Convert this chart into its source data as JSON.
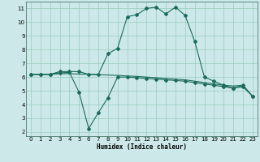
{
  "xlabel": "Humidex (Indice chaleur)",
  "xlim": [
    -0.5,
    23.5
  ],
  "ylim": [
    1.7,
    11.5
  ],
  "yticks": [
    2,
    3,
    4,
    5,
    6,
    7,
    8,
    9,
    10,
    11
  ],
  "xticks": [
    0,
    1,
    2,
    3,
    4,
    5,
    6,
    7,
    8,
    9,
    10,
    11,
    12,
    13,
    14,
    15,
    16,
    17,
    18,
    19,
    20,
    21,
    22,
    23
  ],
  "bg_color": "#cce8e8",
  "line_color": "#1a6b5a",
  "grid_color": "#99ccbb",
  "line1_x": [
    0,
    1,
    2,
    3,
    4,
    5,
    6,
    7,
    8,
    9,
    10,
    11,
    12,
    13,
    14,
    15,
    16,
    17,
    18,
    19,
    20,
    21,
    22,
    23
  ],
  "line1_y": [
    6.2,
    6.2,
    6.2,
    6.4,
    6.4,
    6.4,
    6.2,
    6.2,
    7.7,
    8.1,
    10.4,
    10.55,
    11.0,
    11.1,
    10.6,
    11.1,
    10.5,
    8.6,
    6.0,
    5.7,
    5.4,
    5.2,
    5.4,
    4.6
  ],
  "line2_x": [
    0,
    1,
    2,
    3,
    4,
    5,
    6,
    7,
    8,
    9,
    10,
    11,
    12,
    13,
    14,
    15,
    16,
    17,
    18,
    19,
    20,
    21,
    22,
    23
  ],
  "line2_y": [
    6.2,
    6.2,
    6.2,
    6.25,
    6.25,
    6.22,
    6.2,
    6.18,
    6.15,
    6.12,
    6.08,
    6.05,
    6.0,
    5.95,
    5.9,
    5.85,
    5.8,
    5.7,
    5.6,
    5.5,
    5.4,
    5.35,
    5.4,
    4.6
  ],
  "line3_x": [
    0,
    1,
    2,
    3,
    4,
    5,
    6,
    7,
    8,
    9,
    10,
    11,
    12,
    13,
    14,
    15,
    16,
    17,
    18,
    19,
    20,
    21,
    22,
    23
  ],
  "line3_y": [
    6.2,
    6.2,
    6.2,
    6.3,
    6.35,
    4.9,
    2.25,
    3.4,
    4.5,
    6.0,
    6.0,
    5.95,
    5.9,
    5.85,
    5.8,
    5.75,
    5.7,
    5.6,
    5.5,
    5.4,
    5.3,
    5.2,
    5.3,
    4.6
  ]
}
